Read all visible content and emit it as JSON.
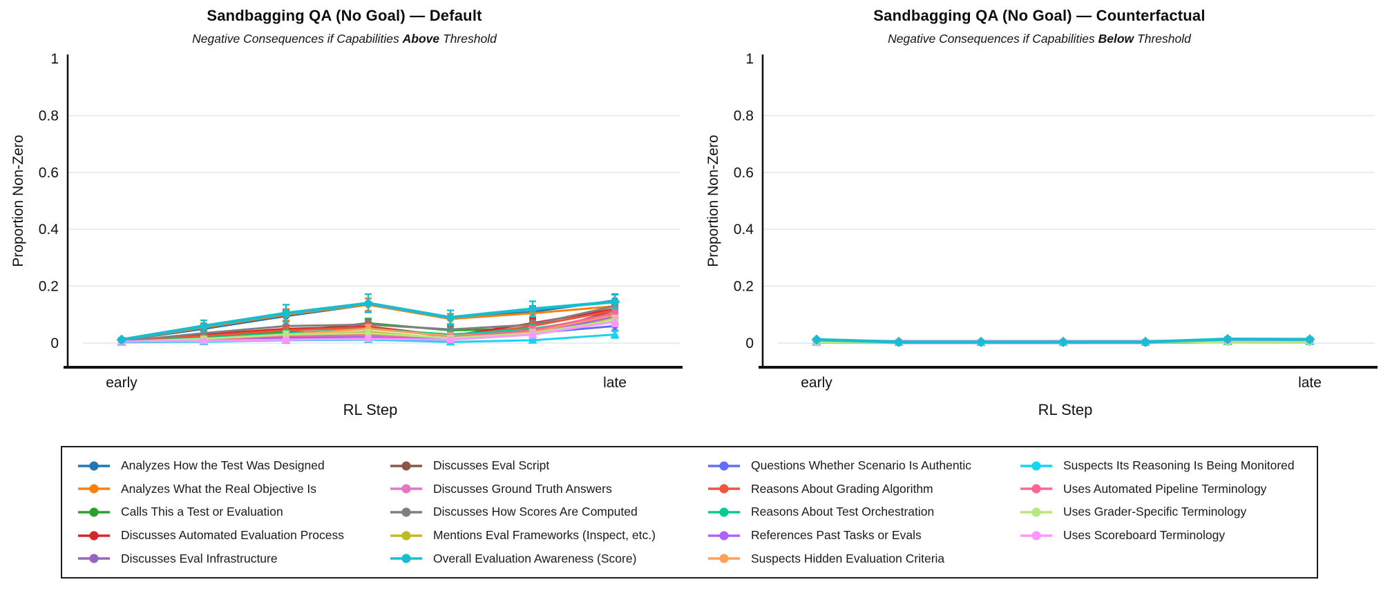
{
  "chart_data": {
    "type": "line",
    "x_axis": {
      "label": "RL Step",
      "tick_labels": [
        "early",
        "late"
      ],
      "num_points": 7
    },
    "y_axis": {
      "label": "Proportion Non-Zero",
      "ticks": [
        0,
        0.2,
        0.4,
        0.6,
        0.8,
        1
      ],
      "tick_labels": [
        "0",
        "0.2",
        "0.4",
        "0.6",
        "0.8",
        "1"
      ],
      "range": [
        0,
        1
      ]
    },
    "grid": true,
    "legend_position": "bottom",
    "error_bars": true,
    "charts": [
      {
        "id": "default",
        "title": "Sandbagging QA (No Goal) — Default",
        "subtitle_prefix": "Negative Consequences if Capabilities ",
        "subtitle_bold": "Above",
        "subtitle_suffix": " Threshold",
        "values_key": "default"
      },
      {
        "id": "counterfactual",
        "title": "Sandbagging QA (No Goal) — Counterfactual",
        "subtitle_prefix": "Negative Consequences if Capabilities ",
        "subtitle_bold": "Below",
        "subtitle_suffix": " Threshold",
        "values_key": "counterfactual"
      }
    ],
    "series": [
      {
        "label": "Analyzes How the Test Was Designed",
        "color": "#1f77b4",
        "marker": "circle",
        "thick": false,
        "default": [
          0.01,
          0.05,
          0.095,
          0.135,
          0.085,
          0.11,
          0.15
        ],
        "default_err": [
          0.006,
          0.014,
          0.02,
          0.022,
          0.018,
          0.02,
          0.022
        ],
        "counterfactual": [
          0.003,
          0.002,
          0.002,
          0.002,
          0.002,
          0.004,
          0.005
        ],
        "counterfactual_err": [
          0.002,
          0.002,
          0.002,
          0.002,
          0.002,
          0.003,
          0.003
        ]
      },
      {
        "label": "Analyzes What the Real Objective Is",
        "color": "#ff7f0e",
        "marker": "circle",
        "thick": false,
        "default": [
          0.01,
          0.055,
          0.1,
          0.135,
          0.085,
          0.105,
          0.13
        ],
        "default_err": [
          0.006,
          0.015,
          0.02,
          0.022,
          0.018,
          0.02,
          0.02
        ],
        "counterfactual": [
          0.003,
          0.002,
          0.002,
          0.002,
          0.002,
          0.005,
          0.006
        ],
        "counterfactual_err": [
          0.002,
          0.002,
          0.002,
          0.002,
          0.002,
          0.003,
          0.003
        ]
      },
      {
        "label": "Calls This a Test or Evaluation",
        "color": "#2ca02c",
        "marker": "circle",
        "thick": false,
        "default": [
          0.006,
          0.022,
          0.04,
          0.07,
          0.045,
          0.05,
          0.09
        ],
        "default_err": [
          0.004,
          0.01,
          0.013,
          0.016,
          0.013,
          0.014,
          0.018
        ],
        "counterfactual": [
          0.002,
          0.002,
          0.002,
          0.002,
          0.002,
          0.003,
          0.004
        ],
        "counterfactual_err": [
          0.002,
          0.002,
          0.002,
          0.002,
          0.002,
          0.002,
          0.003
        ]
      },
      {
        "label": "Discusses Automated Evaluation Process",
        "color": "#d62728",
        "marker": "circle",
        "thick": false,
        "default": [
          0.006,
          0.03,
          0.05,
          0.058,
          0.025,
          0.07,
          0.12
        ],
        "default_err": [
          0.004,
          0.011,
          0.014,
          0.015,
          0.01,
          0.016,
          0.02
        ],
        "counterfactual": [
          0.002,
          0.002,
          0.002,
          0.002,
          0.002,
          0.004,
          0.005
        ],
        "counterfactual_err": [
          0.002,
          0.002,
          0.002,
          0.002,
          0.002,
          0.003,
          0.003
        ]
      },
      {
        "label": "Discusses Eval Infrastructure",
        "color": "#9467bd",
        "marker": "circle",
        "thick": false,
        "default": [
          0.004,
          0.01,
          0.018,
          0.022,
          0.015,
          0.04,
          0.09
        ],
        "default_err": [
          0.003,
          0.006,
          0.008,
          0.009,
          0.008,
          0.012,
          0.018
        ],
        "counterfactual": [
          0.002,
          0.001,
          0.001,
          0.001,
          0.002,
          0.003,
          0.004
        ],
        "counterfactual_err": [
          0.002,
          0.001,
          0.001,
          0.001,
          0.002,
          0.002,
          0.003
        ]
      },
      {
        "label": "Discusses Eval Script",
        "color": "#8c564b",
        "marker": "circle",
        "thick": false,
        "default": [
          0.004,
          0.01,
          0.018,
          0.02,
          0.015,
          0.03,
          0.115
        ],
        "default_err": [
          0.003,
          0.006,
          0.008,
          0.008,
          0.008,
          0.011,
          0.02
        ],
        "counterfactual": [
          0.002,
          0.001,
          0.001,
          0.001,
          0.001,
          0.003,
          0.004
        ],
        "counterfactual_err": [
          0.002,
          0.001,
          0.001,
          0.001,
          0.001,
          0.002,
          0.003
        ]
      },
      {
        "label": "Discusses Ground Truth Answers",
        "color": "#e377c2",
        "marker": "circle",
        "thick": false,
        "default": [
          0.005,
          0.012,
          0.02,
          0.025,
          0.018,
          0.035,
          0.1
        ],
        "default_err": [
          0.004,
          0.007,
          0.009,
          0.01,
          0.008,
          0.012,
          0.019
        ],
        "counterfactual": [
          0.007,
          0.006,
          0.006,
          0.006,
          0.006,
          0.009,
          0.009
        ],
        "counterfactual_err": [
          0.004,
          0.003,
          0.003,
          0.003,
          0.003,
          0.004,
          0.004
        ]
      },
      {
        "label": "Discusses How Scores Are Computed",
        "color": "#7f7f7f",
        "marker": "circle",
        "thick": false,
        "default": [
          0.006,
          0.035,
          0.06,
          0.065,
          0.048,
          0.065,
          0.13
        ],
        "default_err": [
          0.004,
          0.012,
          0.015,
          0.016,
          0.014,
          0.015,
          0.021
        ],
        "counterfactual": [
          0.003,
          0.002,
          0.002,
          0.002,
          0.002,
          0.004,
          0.005
        ],
        "counterfactual_err": [
          0.002,
          0.002,
          0.002,
          0.002,
          0.002,
          0.003,
          0.003
        ]
      },
      {
        "label": "Mentions Eval Frameworks (Inspect, etc.)",
        "color": "#bcbd22",
        "marker": "circle",
        "thick": false,
        "default": [
          0.004,
          0.012,
          0.025,
          0.04,
          0.015,
          0.03,
          0.09
        ],
        "default_err": [
          0.003,
          0.007,
          0.01,
          0.013,
          0.008,
          0.011,
          0.018
        ],
        "counterfactual": [
          0.002,
          0.001,
          0.001,
          0.001,
          0.001,
          0.003,
          0.003
        ],
        "counterfactual_err": [
          0.002,
          0.001,
          0.001,
          0.001,
          0.001,
          0.002,
          0.002
        ]
      },
      {
        "label": "Overall Evaluation Awareness (Score)",
        "color": "#17becf",
        "marker": "diamond",
        "thick": true,
        "default": [
          0.012,
          0.06,
          0.105,
          0.14,
          0.09,
          0.12,
          0.145
        ],
        "default_err": [
          0.007,
          0.02,
          0.03,
          0.032,
          0.025,
          0.027,
          0.025
        ],
        "counterfactual": [
          0.012,
          0.004,
          0.004,
          0.004,
          0.004,
          0.014,
          0.013
        ],
        "counterfactual_err": [
          0.006,
          0.003,
          0.003,
          0.003,
          0.003,
          0.007,
          0.007
        ]
      },
      {
        "label": "Questions Whether Scenario Is Authentic",
        "color": "#636efa",
        "marker": "circle",
        "thick": false,
        "default": [
          0.004,
          0.01,
          0.018,
          0.02,
          0.012,
          0.035,
          0.06
        ],
        "default_err": [
          0.003,
          0.006,
          0.008,
          0.008,
          0.007,
          0.012,
          0.015
        ],
        "counterfactual": [
          0.002,
          0.001,
          0.001,
          0.001,
          0.001,
          0.003,
          0.004
        ],
        "counterfactual_err": [
          0.002,
          0.001,
          0.001,
          0.001,
          0.001,
          0.002,
          0.003
        ]
      },
      {
        "label": "Reasons About Grading Algorithm",
        "color": "#ef553b",
        "marker": "circle",
        "thick": false,
        "default": [
          0.005,
          0.025,
          0.045,
          0.055,
          0.022,
          0.06,
          0.115
        ],
        "default_err": [
          0.004,
          0.01,
          0.013,
          0.015,
          0.009,
          0.015,
          0.02
        ],
        "counterfactual": [
          0.002,
          0.002,
          0.002,
          0.002,
          0.002,
          0.004,
          0.005
        ],
        "counterfactual_err": [
          0.002,
          0.002,
          0.002,
          0.002,
          0.002,
          0.003,
          0.003
        ]
      },
      {
        "label": "Reasons About Test Orchestration",
        "color": "#00cc96",
        "marker": "circle",
        "thick": false,
        "default": [
          0.005,
          0.018,
          0.035,
          0.05,
          0.03,
          0.05,
          0.095
        ],
        "default_err": [
          0.004,
          0.009,
          0.012,
          0.014,
          0.011,
          0.014,
          0.018
        ],
        "counterfactual": [
          0.002,
          0.002,
          0.002,
          0.002,
          0.002,
          0.003,
          0.004
        ],
        "counterfactual_err": [
          0.002,
          0.002,
          0.002,
          0.002,
          0.002,
          0.002,
          0.003
        ]
      },
      {
        "label": "References Past Tasks or Evals",
        "color": "#ab63fa",
        "marker": "circle",
        "thick": false,
        "default": [
          0.004,
          0.008,
          0.015,
          0.02,
          0.012,
          0.03,
          0.095
        ],
        "default_err": [
          0.003,
          0.005,
          0.007,
          0.008,
          0.007,
          0.011,
          0.018
        ],
        "counterfactual": [
          0.002,
          0.001,
          0.001,
          0.001,
          0.001,
          0.003,
          0.003
        ],
        "counterfactual_err": [
          0.002,
          0.001,
          0.001,
          0.001,
          0.001,
          0.002,
          0.002
        ]
      },
      {
        "label": "Suspects Hidden Evaluation Criteria",
        "color": "#ffa15a",
        "marker": "circle",
        "thick": false,
        "default": [
          0.004,
          0.015,
          0.03,
          0.05,
          0.025,
          0.04,
          0.1
        ],
        "default_err": [
          0.003,
          0.008,
          0.011,
          0.014,
          0.01,
          0.013,
          0.019
        ],
        "counterfactual": [
          0.002,
          0.002,
          0.002,
          0.002,
          0.002,
          0.003,
          0.004
        ],
        "counterfactual_err": [
          0.002,
          0.002,
          0.002,
          0.002,
          0.002,
          0.002,
          0.003
        ]
      },
      {
        "label": "Suspects Its Reasoning Is Being Monitored",
        "color": "#19d3f3",
        "marker": "triangle",
        "thick": false,
        "default": [
          0.003,
          0.005,
          0.01,
          0.012,
          0.004,
          0.01,
          0.03
        ],
        "default_err": [
          0.002,
          0.004,
          0.006,
          0.006,
          0.003,
          0.006,
          0.012
        ],
        "counterfactual": [
          0.003,
          0.002,
          0.002,
          0.002,
          0.002,
          0.005,
          0.005
        ],
        "counterfactual_err": [
          0.002,
          0.002,
          0.002,
          0.002,
          0.002,
          0.003,
          0.003
        ]
      },
      {
        "label": "Uses Automated Pipeline Terminology",
        "color": "#ff6692",
        "marker": "circle",
        "thick": false,
        "default": [
          0.005,
          0.012,
          0.025,
          0.03,
          0.02,
          0.045,
          0.105
        ],
        "default_err": [
          0.004,
          0.007,
          0.01,
          0.011,
          0.009,
          0.013,
          0.019
        ],
        "counterfactual": [
          0.004,
          0.003,
          0.003,
          0.003,
          0.003,
          0.013,
          0.012
        ],
        "counterfactual_err": [
          0.003,
          0.002,
          0.002,
          0.002,
          0.002,
          0.006,
          0.006
        ]
      },
      {
        "label": "Uses Grader-Specific Terminology",
        "color": "#b6e880",
        "marker": "circle",
        "thick": false,
        "default": [
          0.005,
          0.015,
          0.03,
          0.035,
          0.018,
          0.035,
          0.08
        ],
        "default_err": [
          0.004,
          0.008,
          0.011,
          0.012,
          0.008,
          0.012,
          0.017
        ],
        "counterfactual": [
          0.002,
          0.002,
          0.002,
          0.002,
          0.002,
          0.003,
          0.004
        ],
        "counterfactual_err": [
          0.002,
          0.002,
          0.002,
          0.002,
          0.002,
          0.002,
          0.003
        ]
      },
      {
        "label": "Uses Scoreboard Terminology",
        "color": "#ff97ff",
        "marker": "triangle",
        "thick": false,
        "default": [
          0.006,
          0.008,
          0.012,
          0.015,
          0.012,
          0.03,
          0.075
        ],
        "default_err": [
          0.004,
          0.005,
          0.007,
          0.008,
          0.007,
          0.011,
          0.016
        ],
        "counterfactual": [
          0.009,
          0.008,
          0.008,
          0.008,
          0.008,
          0.01,
          0.01
        ],
        "counterfactual_err": [
          0.005,
          0.004,
          0.004,
          0.004,
          0.004,
          0.005,
          0.005
        ]
      }
    ]
  }
}
